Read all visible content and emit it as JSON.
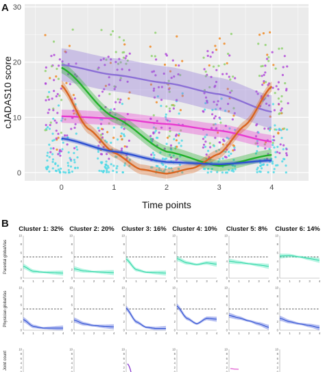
{
  "colors": {
    "panel_bg": "#ebebeb",
    "grid": "#ffffff",
    "purple": "#8b6fd6",
    "green": "#22b02a",
    "orange": "#d9641e",
    "magenta": "#e83ad0",
    "blue": "#2c4fd1",
    "teal_band": "#5fe8c0",
    "blue_band": "#5a6fe0",
    "points": [
      "#4fd9e6",
      "#b24ad9",
      "#8fd16e",
      "#f08a24"
    ]
  },
  "panel_a": {
    "label": "A",
    "chart_data": {
      "type": "scatter",
      "title": "",
      "xlabel": "Time points",
      "ylabel": "cJADAS10 score",
      "xlim": [
        -0.7,
        4.7
      ],
      "ylim": [
        -1.5,
        30.5
      ],
      "xticks": [
        "0",
        "1",
        "2",
        "3",
        "4"
      ],
      "yticks": [
        "0",
        "10",
        "20",
        "30"
      ],
      "grid": true,
      "legend": "none",
      "curves": [
        {
          "color": "purple",
          "band": 3.0,
          "points": [
            [
              0,
              19.5
            ],
            [
              1,
              17.7
            ],
            [
              2,
              16.2
            ],
            [
              3,
              14.2
            ],
            [
              4,
              11.0
            ]
          ]
        },
        {
          "color": "magenta",
          "band": 1.2,
          "points": [
            [
              0,
              10.2
            ],
            [
              1,
              9.8
            ],
            [
              2,
              8.8
            ],
            [
              3,
              7.6
            ],
            [
              4,
              5.6
            ]
          ]
        },
        {
          "color": "green",
          "band": 1.0,
          "points": [
            [
              0,
              19.0
            ],
            [
              1,
              10.0
            ],
            [
              2,
              3.8
            ],
            [
              3,
              1.2
            ],
            [
              4,
              3.2
            ]
          ]
        },
        {
          "color": "orange",
          "band": 0.9,
          "points": [
            [
              0,
              15.8
            ],
            [
              0.5,
              8.0
            ],
            [
              1,
              3.6
            ],
            [
              1.5,
              0.6
            ],
            [
              2,
              -0.2
            ],
            [
              2.5,
              0.8
            ],
            [
              3,
              3.4
            ],
            [
              3.5,
              8.6
            ],
            [
              4,
              15.6
            ]
          ]
        },
        {
          "color": "blue",
          "band": 0.4,
          "points": [
            [
              0,
              6.2
            ],
            [
              1,
              3.8
            ],
            [
              2,
              1.9
            ],
            [
              3,
              1.5
            ],
            [
              4,
              2.2
            ]
          ]
        }
      ]
    }
  },
  "panel_b": {
    "label": "B",
    "cluster_titles": [
      "Cluster 1: 32%",
      "Cluster 2: 20%",
      "Cluster 3: 16%",
      "Cluster 4: 10%",
      "Cluster 5: 8%",
      "Cluster 6: 14%"
    ],
    "row_labels": [
      "Parental globalVas",
      "Physician globalVas",
      "Joint count"
    ],
    "yticks": [
      "0",
      "2",
      "4",
      "6",
      "8",
      "10"
    ],
    "xticks": [
      "0",
      "1",
      "2",
      "3",
      "4"
    ],
    "chart_data": [
      {
        "type": "line",
        "ylabel": "Parental globalVas",
        "xlim": [
          0,
          4
        ],
        "ylim": [
          0,
          10
        ],
        "dashed_reference": 5,
        "band_color": "teal_band",
        "series": [
          {
            "cluster": 1,
            "points": [
              [
                0,
                2.8
              ],
              [
                1,
                1.6
              ],
              [
                2,
                1.4
              ],
              [
                3,
                1.3
              ],
              [
                4,
                1.2
              ]
            ]
          },
          {
            "cluster": 2,
            "points": [
              [
                0,
                2.2
              ],
              [
                1,
                1.7
              ],
              [
                2,
                1.5
              ],
              [
                3,
                1.4
              ],
              [
                4,
                1.3
              ]
            ]
          },
          {
            "cluster": 3,
            "points": [
              [
                0,
                4.5
              ],
              [
                1,
                2.0
              ],
              [
                2,
                1.4
              ],
              [
                3,
                1.3
              ],
              [
                4,
                1.2
              ]
            ]
          },
          {
            "cluster": 4,
            "points": [
              [
                0,
                4.6
              ],
              [
                1,
                3.6
              ],
              [
                2,
                3.2
              ],
              [
                3,
                3.6
              ],
              [
                4,
                3.3
              ]
            ]
          },
          {
            "cluster": 5,
            "points": [
              [
                0,
                4.0
              ],
              [
                1,
                3.7
              ],
              [
                2,
                3.4
              ],
              [
                3,
                3.1
              ],
              [
                4,
                2.8
              ]
            ]
          },
          {
            "cluster": 6,
            "points": [
              [
                0,
                5.2
              ],
              [
                1,
                5.3
              ],
              [
                2,
                5.0
              ],
              [
                3,
                4.6
              ],
              [
                4,
                4.2
              ]
            ]
          }
        ]
      },
      {
        "type": "line",
        "ylabel": "Physician globalVas",
        "xlim": [
          0,
          4
        ],
        "ylim": [
          0,
          10
        ],
        "dashed_reference": 5,
        "band_color": "blue_band",
        "series": [
          {
            "cluster": 1,
            "points": [
              [
                0,
                2.5
              ],
              [
                1,
                0.9
              ],
              [
                2,
                0.5
              ],
              [
                3,
                0.5
              ],
              [
                4,
                0.5
              ]
            ]
          },
          {
            "cluster": 2,
            "points": [
              [
                0,
                2.4
              ],
              [
                1,
                1.5
              ],
              [
                2,
                1.1
              ],
              [
                3,
                0.9
              ],
              [
                4,
                0.8
              ]
            ]
          },
          {
            "cluster": 3,
            "points": [
              [
                0,
                5.2
              ],
              [
                1,
                2.0
              ],
              [
                2,
                0.7
              ],
              [
                3,
                0.4
              ],
              [
                4,
                0.4
              ]
            ]
          },
          {
            "cluster": 4,
            "points": [
              [
                0,
                5.7
              ],
              [
                1,
                2.8
              ],
              [
                2,
                1.5
              ],
              [
                3,
                2.8
              ],
              [
                4,
                2.6
              ]
            ]
          },
          {
            "cluster": 5,
            "points": [
              [
                0,
                3.5
              ],
              [
                1,
                2.9
              ],
              [
                2,
                2.2
              ],
              [
                3,
                1.5
              ],
              [
                4,
                0.7
              ]
            ]
          },
          {
            "cluster": 6,
            "points": [
              [
                0,
                2.8
              ],
              [
                1,
                2.0
              ],
              [
                2,
                1.5
              ],
              [
                3,
                1.1
              ],
              [
                4,
                0.6
              ]
            ]
          }
        ]
      }
    ]
  }
}
